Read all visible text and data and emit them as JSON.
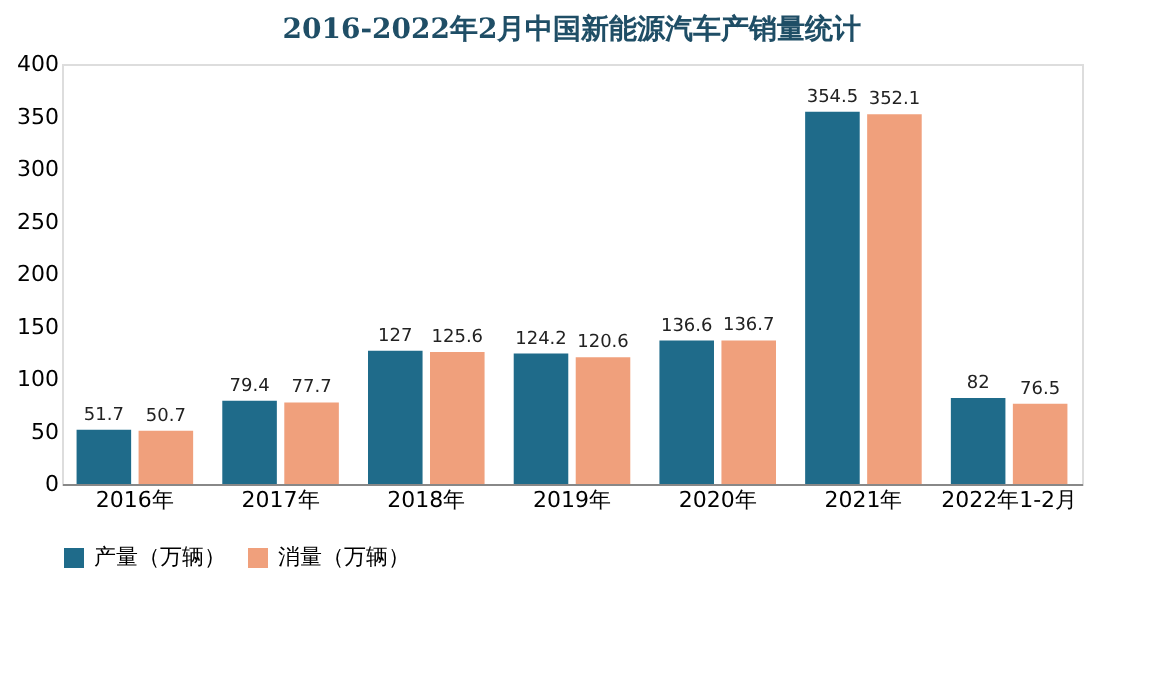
{
  "chart_data": {
    "type": "bar",
    "title": "2016-2022年2月中国新能源汽车产销量统计",
    "categories": [
      "2016年",
      "2017年",
      "2018年",
      "2019年",
      "2020年",
      "2021年",
      "2022年1-2月"
    ],
    "series": [
      {
        "name": "产量（万辆）",
        "color": "#1f6b8a",
        "values": [
          51.7,
          79.4,
          127,
          124.2,
          136.6,
          354.5,
          82
        ]
      },
      {
        "name": "消量（万辆）",
        "color": "#f0a07c",
        "values": [
          50.7,
          77.7,
          125.6,
          120.6,
          136.7,
          352.1,
          76.5
        ]
      }
    ],
    "ylim": [
      0,
      400
    ],
    "yticks": [
      0,
      50,
      100,
      150,
      200,
      250,
      300,
      350,
      400
    ],
    "grid": false,
    "legend": "bottom",
    "data_labels": true
  }
}
